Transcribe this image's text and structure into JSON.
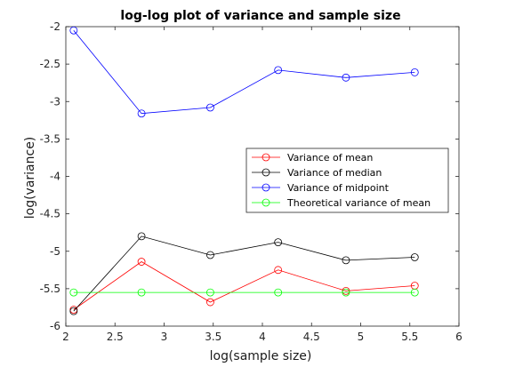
{
  "chart_data": {
    "type": "line",
    "title": "log-log plot of variance and sample size",
    "xlabel": "log(sample size)",
    "ylabel": "log(variance)",
    "xlim": [
      2,
      6
    ],
    "ylim": [
      -6,
      -2
    ],
    "xticks": [
      "2",
      "2.5",
      "3",
      "3.5",
      "4",
      "4.5",
      "5",
      "5.5",
      "6"
    ],
    "yticks": [
      "-6",
      "-5.5",
      "-5",
      "-4.5",
      "-4",
      "-3.5",
      "-3",
      "-2.5",
      "-2"
    ],
    "grid": false,
    "legend_position": "middle-right",
    "x": [
      2.08,
      2.77,
      3.47,
      4.16,
      4.85,
      5.55
    ],
    "series": [
      {
        "name": "Variance of mean",
        "color": "#ff0000",
        "marker": "circle",
        "values": [
          -5.78,
          -5.14,
          -5.68,
          -5.25,
          -5.53,
          -5.46
        ]
      },
      {
        "name": "Variance of median",
        "color": "#000000",
        "marker": "circle",
        "values": [
          -5.8,
          -4.8,
          -5.05,
          -4.88,
          -5.12,
          -5.08
        ]
      },
      {
        "name": "Variance of midpoint",
        "color": "#0000ff",
        "marker": "circle",
        "values": [
          -2.05,
          -3.16,
          -3.08,
          -2.58,
          -2.68,
          -2.61
        ]
      },
      {
        "name": "Theoretical variance of mean",
        "color": "#00ff00",
        "marker": "circle",
        "values": [
          -5.55,
          -5.55,
          -5.55,
          -5.55,
          -5.55,
          -5.55
        ]
      }
    ]
  }
}
